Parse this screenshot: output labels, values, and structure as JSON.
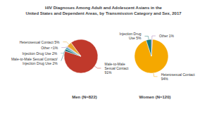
{
  "chart_data": {
    "type": "pie",
    "title": "HIV Diagnoses Among Adult and Adolescent Asians in the\nUnited States and Dependent Areas, by Transmission Category and Sex, 2017",
    "series": [
      {
        "name": "Men (N=822)",
        "categories": [
          "Male-to-Male\nSexual Contact\n91%",
          "Heterosexual Contact 5%",
          "Other <1%",
          "Injection Drug Use 2%",
          "Male-to-Male Sexual Contact/\nInjection Drug Use 2%"
        ],
        "values": [
          91,
          5,
          1,
          2,
          2
        ],
        "colors": [
          "#c0392b",
          "#e8a430",
          "#a67bb5",
          "#4fa8b8",
          "#1a6b7a"
        ]
      },
      {
        "name": "Women (N=120)",
        "categories": [
          "Heterosexual Contact\n94%",
          "Other 1%",
          "Injection Drug\nUse 5%"
        ],
        "values": [
          94,
          1,
          5
        ],
        "colors": [
          "#f5a800",
          "#a67bb5",
          "#1a7a7a"
        ]
      }
    ]
  }
}
